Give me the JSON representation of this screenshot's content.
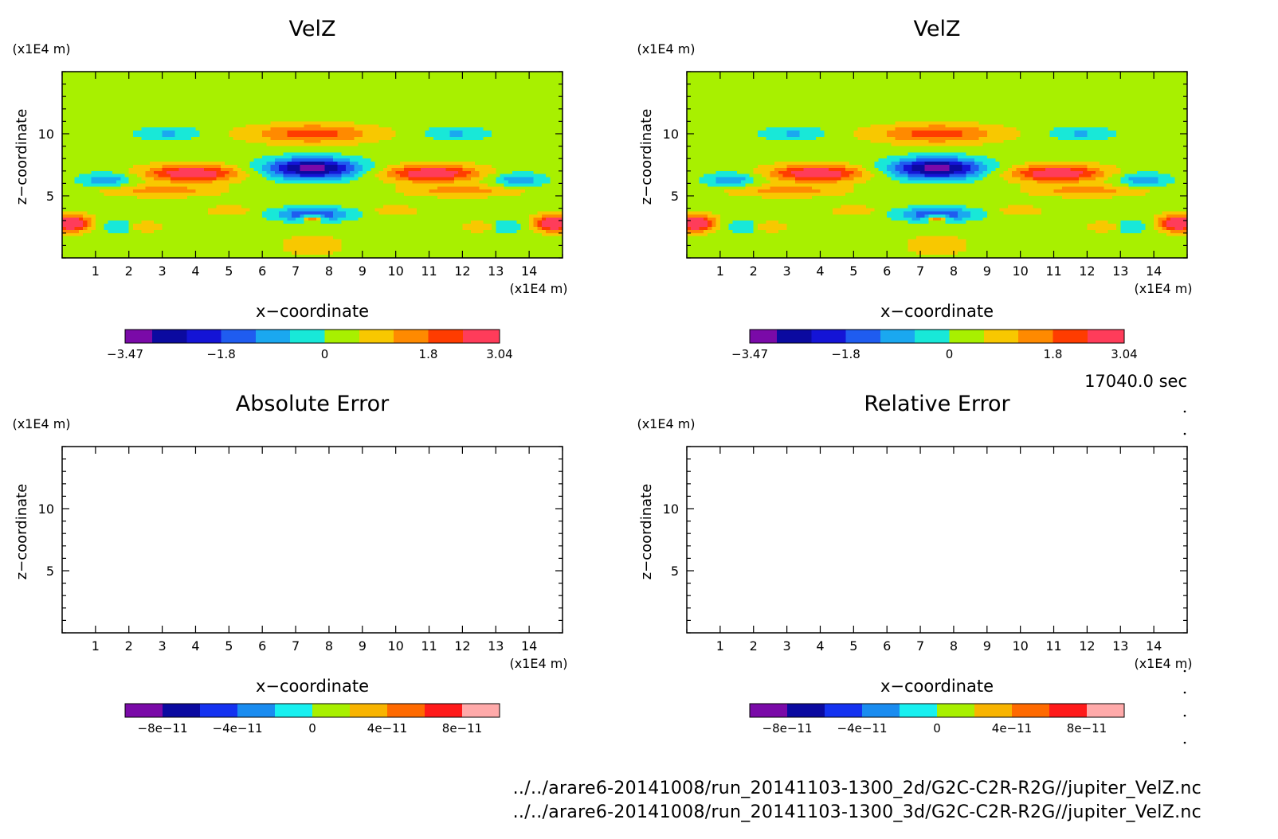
{
  "footer": {
    "time": "17040.0 sec",
    "files": [
      "../../arare6-20141008/run_20141103-1300_2d/G2C-C2R-R2G//jupiter_VelZ.nc",
      "../../arare6-20141008/run_20141103-1300_3d/G2C-C2R-R2G//jupiter_VelZ.nc"
    ]
  },
  "chart_data": [
    {
      "type": "heatmap",
      "title": "VelZ",
      "xlabel": "x−coordinate",
      "xunit": "(x1E4 m)",
      "ylabel": "z−coordinate",
      "yunit": "(x1E4 m)",
      "xlim": [
        0,
        15
      ],
      "ylim": [
        0,
        15
      ],
      "xticks": [
        1,
        2,
        3,
        4,
        5,
        6,
        7,
        8,
        9,
        10,
        11,
        12,
        13,
        14
      ],
      "yticks": [
        5,
        10
      ],
      "colorbar": {
        "labels": [
          {
            "value": -3.47,
            "text": "−3.47"
          },
          {
            "value": -1.8,
            "text": "−1.8"
          },
          {
            "value": 0,
            "text": "0"
          },
          {
            "value": 1.8,
            "text": "1.8"
          },
          {
            "value": 3.04,
            "text": "3.04"
          }
        ],
        "levels": [
          -3.47,
          -3.0,
          -2.4,
          -1.8,
          -1.2,
          -0.6,
          0,
          0.6,
          1.2,
          1.8,
          2.4,
          3.04
        ],
        "colors": [
          "#7a0aa8",
          "#0b0aa0",
          "#1414d6",
          "#1f5cf0",
          "#1aa8f0",
          "#18e8d8",
          "#a8f000",
          "#f8c800",
          "#ff8a00",
          "#ff3c00",
          "#ff3c5a"
        ]
      },
      "field": "velz"
    },
    {
      "type": "heatmap",
      "title": "VelZ",
      "xlabel": "x−coordinate",
      "xunit": "(x1E4 m)",
      "ylabel": "z−coordinate",
      "yunit": "(x1E4 m)",
      "xlim": [
        0,
        15
      ],
      "ylim": [
        0,
        15
      ],
      "xticks": [
        1,
        2,
        3,
        4,
        5,
        6,
        7,
        8,
        9,
        10,
        11,
        12,
        13,
        14
      ],
      "yticks": [
        5,
        10
      ],
      "colorbar": {
        "labels": [
          {
            "value": -3.47,
            "text": "−3.47"
          },
          {
            "value": -1.8,
            "text": "−1.8"
          },
          {
            "value": 0,
            "text": "0"
          },
          {
            "value": 1.8,
            "text": "1.8"
          },
          {
            "value": 3.04,
            "text": "3.04"
          }
        ],
        "levels": [
          -3.47,
          -3.0,
          -2.4,
          -1.8,
          -1.2,
          -0.6,
          0,
          0.6,
          1.2,
          1.8,
          2.4,
          3.04
        ],
        "colors": [
          "#7a0aa8",
          "#0b0aa0",
          "#1414d6",
          "#1f5cf0",
          "#1aa8f0",
          "#18e8d8",
          "#a8f000",
          "#f8c800",
          "#ff8a00",
          "#ff3c00",
          "#ff3c5a"
        ]
      },
      "field": "velz"
    },
    {
      "type": "heatmap",
      "title": "Absolute Error",
      "xlabel": "x−coordinate",
      "xunit": "(x1E4 m)",
      "ylabel": "z−coordinate",
      "yunit": "(x1E4 m)",
      "xlim": [
        0,
        15
      ],
      "ylim": [
        0,
        15
      ],
      "xticks": [
        1,
        2,
        3,
        4,
        5,
        6,
        7,
        8,
        9,
        10,
        11,
        12,
        13,
        14
      ],
      "yticks": [
        5,
        10
      ],
      "colorbar": {
        "labels": [
          {
            "value": -8e-11,
            "text": "−8e−11"
          },
          {
            "value": -4e-11,
            "text": "−4e−11"
          },
          {
            "value": 0,
            "text": "0"
          },
          {
            "value": 4e-11,
            "text": "4e−11"
          },
          {
            "value": 8e-11,
            "text": "8e−11"
          }
        ],
        "levels": [
          -1e-10,
          -8e-11,
          -6e-11,
          -4e-11,
          -2e-11,
          0,
          2e-11,
          4e-11,
          6e-11,
          8e-11,
          1e-10
        ],
        "colors": [
          "#7a0aa8",
          "#0b0aa0",
          "#1432f0",
          "#1a8cf0",
          "#18f0f0",
          "#a8f000",
          "#f8b400",
          "#ff6a00",
          "#ff1a1a",
          "#ffaaaa"
        ]
      },
      "field": "empty"
    },
    {
      "type": "heatmap",
      "title": "Relative Error",
      "xlabel": "x−coordinate",
      "xunit": "(x1E4 m)",
      "ylabel": "z−coordinate",
      "yunit": "(x1E4 m)",
      "xlim": [
        0,
        15
      ],
      "ylim": [
        0,
        15
      ],
      "xticks": [
        1,
        2,
        3,
        4,
        5,
        6,
        7,
        8,
        9,
        10,
        11,
        12,
        13,
        14
      ],
      "yticks": [
        5,
        10
      ],
      "colorbar": {
        "labels": [
          {
            "value": -8e-11,
            "text": "−8e−11"
          },
          {
            "value": -4e-11,
            "text": "−4e−11"
          },
          {
            "value": 0,
            "text": "0"
          },
          {
            "value": 4e-11,
            "text": "4e−11"
          },
          {
            "value": 8e-11,
            "text": "8e−11"
          }
        ],
        "levels": [
          -1e-10,
          -8e-11,
          -6e-11,
          -4e-11,
          -2e-11,
          0,
          2e-11,
          4e-11,
          6e-11,
          8e-11,
          1e-10
        ],
        "colors": [
          "#7a0aa8",
          "#0b0aa0",
          "#1432f0",
          "#1a8cf0",
          "#18f0f0",
          "#a8f000",
          "#f8b400",
          "#ff6a00",
          "#ff1a1a",
          "#ffaaaa"
        ]
      },
      "field": "empty"
    }
  ]
}
